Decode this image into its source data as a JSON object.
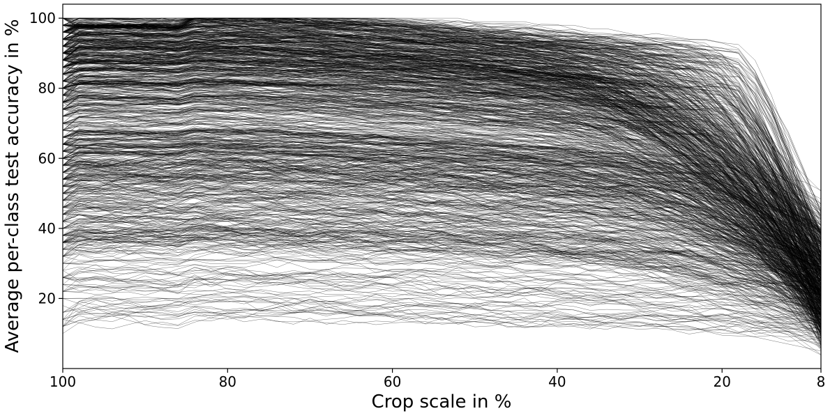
{
  "chart_data": {
    "type": "line",
    "title": "",
    "xlabel": "Crop scale in %",
    "ylabel": "Average per-class test accuracy in %",
    "x_ticks": [
      100,
      80,
      60,
      40,
      20,
      8
    ],
    "x_tick_labels": [
      "100",
      "80",
      "60",
      "40",
      "20",
      "8"
    ],
    "y_ticks": [
      20,
      40,
      60,
      80,
      100
    ],
    "y_tick_labels": [
      "20",
      "40",
      "60",
      "80",
      "100"
    ],
    "xlim": [
      100,
      8
    ],
    "ylim": [
      0,
      104
    ],
    "grid": false,
    "legend": "none",
    "line_color": "#000000",
    "series_count": 1000,
    "x": [
      100,
      98,
      96,
      94,
      92,
      90,
      88,
      86,
      84,
      82,
      80,
      78,
      76,
      74,
      72,
      70,
      68,
      66,
      64,
      62,
      60,
      58,
      56,
      54,
      52,
      50,
      48,
      46,
      44,
      42,
      40,
      38,
      36,
      34,
      32,
      30,
      28,
      26,
      24,
      22,
      20,
      18,
      16,
      14,
      12,
      10,
      8
    ],
    "representative_series": [
      {
        "values": [
          100,
          100,
          100,
          100,
          100,
          100,
          100,
          100,
          100,
          100,
          100,
          100,
          100,
          100,
          100,
          100,
          100,
          100,
          100,
          100,
          100,
          100,
          100,
          100,
          100,
          99,
          99,
          99,
          99,
          98,
          98,
          98,
          97,
          97,
          96,
          95,
          94,
          93,
          92,
          90,
          88,
          85,
          80,
          73,
          64,
          52,
          38
        ]
      },
      {
        "values": [
          90,
          91,
          91,
          92,
          92,
          92,
          92,
          92,
          92,
          92,
          92,
          92,
          91,
          91,
          91,
          91,
          90,
          90,
          90,
          90,
          89,
          89,
          88,
          88,
          87,
          87,
          86,
          85,
          84,
          83,
          82,
          80,
          78,
          76,
          73,
          70,
          66,
          62,
          57,
          52,
          46,
          40,
          34,
          28,
          23,
          19,
          16
        ]
      },
      {
        "values": [
          75,
          76,
          77,
          77,
          78,
          78,
          78,
          78,
          78,
          78,
          77,
          77,
          77,
          77,
          77,
          76,
          76,
          76,
          75,
          75,
          75,
          74,
          74,
          73,
          73,
          72,
          71,
          70,
          69,
          68,
          67,
          65,
          63,
          61,
          58,
          55,
          52,
          48,
          45,
          41,
          38,
          34,
          31,
          28,
          25,
          22,
          20
        ]
      },
      {
        "values": [
          60,
          61,
          62,
          62,
          63,
          63,
          63,
          63,
          63,
          63,
          63,
          63,
          63,
          62,
          62,
          62,
          62,
          62,
          61,
          61,
          61,
          60,
          60,
          59,
          59,
          58,
          57,
          56,
          55,
          54,
          53,
          51,
          50,
          48,
          46,
          44,
          42,
          40,
          38,
          36,
          34,
          32,
          30,
          28,
          26,
          24,
          22
        ]
      },
      {
        "values": [
          45,
          45,
          46,
          46,
          46,
          46,
          46,
          46,
          46,
          46,
          46,
          46,
          46,
          46,
          45,
          45,
          45,
          45,
          45,
          45,
          44,
          44,
          44,
          43,
          43,
          43,
          42,
          42,
          41,
          41,
          40,
          39,
          38,
          37,
          36,
          35,
          34,
          33,
          32,
          31,
          30,
          29,
          27,
          25,
          22,
          19,
          16
        ]
      },
      {
        "values": [
          30,
          30,
          31,
          31,
          31,
          31,
          31,
          31,
          31,
          31,
          31,
          31,
          31,
          31,
          31,
          31,
          31,
          30,
          30,
          30,
          30,
          30,
          30,
          30,
          29,
          29,
          29,
          29,
          28,
          28,
          28,
          27,
          27,
          26,
          26,
          25,
          25,
          24,
          23,
          22,
          21,
          20,
          18,
          16,
          14,
          12,
          10
        ]
      },
      {
        "values": [
          14,
          13,
          14,
          15,
          16,
          16,
          16,
          15,
          16,
          15,
          16,
          16,
          15,
          15,
          16,
          16,
          15,
          16,
          15,
          15,
          15,
          14,
          15,
          14,
          15,
          14,
          15,
          14,
          14,
          15,
          14,
          14,
          14,
          13,
          13,
          13,
          12,
          12,
          12,
          11,
          11,
          10,
          9,
          8,
          7,
          6,
          5
        ]
      }
    ]
  }
}
